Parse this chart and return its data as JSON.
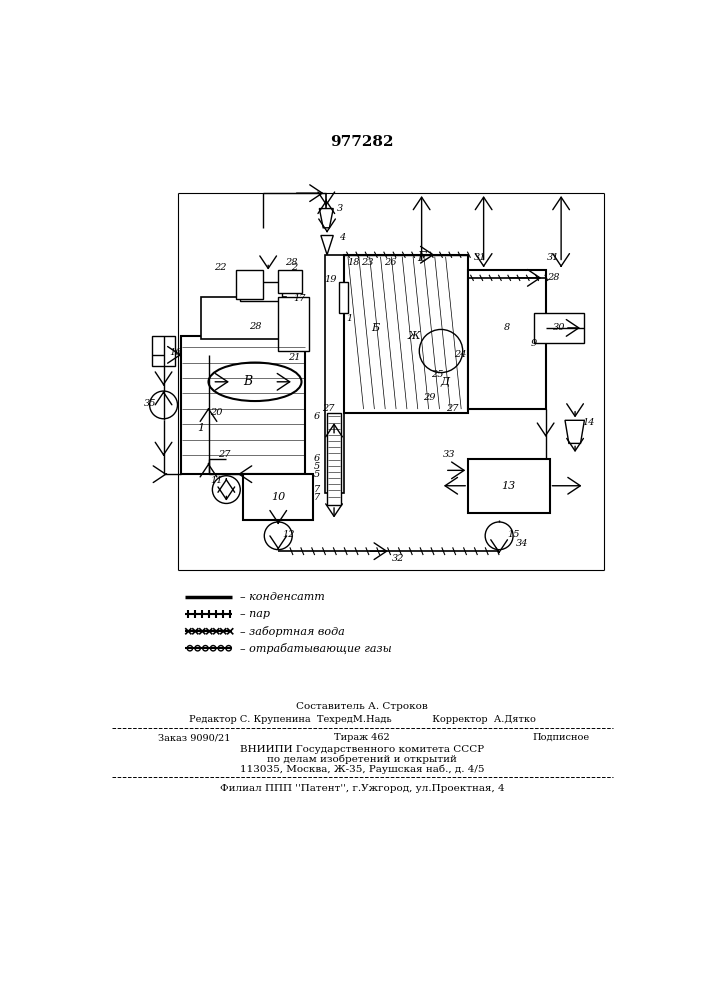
{
  "patent_number": "977282",
  "bg": "#ffffff",
  "lc": "#000000",
  "footer": {
    "line1": "Составитель А. Строков",
    "line2": "Редактор С. Крупенина  ТехредМ.Надь             Корректор  А.Дятко",
    "line3a": "Заказ 9090/21",
    "line3b": "Тираж 462",
    "line3c": "Подписное",
    "line4": "ВНИИПИ Государственного комитета СССР",
    "line5": "по делам изобретений и открытий",
    "line6": "113035, Москва, Ж-35, Раушская наб., д. 4/5",
    "line7": "Филиал ППП ''Патент'', г.Ужгород, ул.Проектная, 4"
  },
  "legend": {
    "l1": "– конденсатт",
    "l2": "– пар",
    "l3": "– забортная вода",
    "l4": "– отрабатывающие газы"
  }
}
